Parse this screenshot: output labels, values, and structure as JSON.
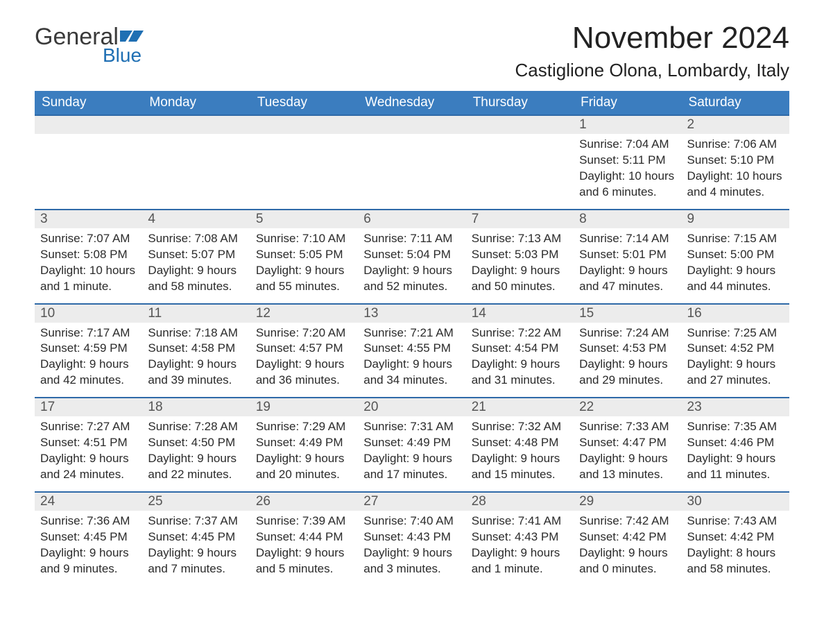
{
  "colors": {
    "header_blue": "#3b7dbf",
    "line_blue": "#2f6aa8",
    "band_gray": "#ececec",
    "logo_blue": "#1f6fb3",
    "background": "#ffffff",
    "text_dark": "#2a2a2a"
  },
  "logo": {
    "word1": "General",
    "word2": "Blue"
  },
  "title": "November 2024",
  "location": "Castiglione Olona, Lombardy, Italy",
  "weekdays": [
    "Sunday",
    "Monday",
    "Tuesday",
    "Wednesday",
    "Thursday",
    "Friday",
    "Saturday"
  ],
  "layout": {
    "columns": 7,
    "rows": 5,
    "type": "calendar"
  },
  "weeks": [
    [
      {
        "empty": true
      },
      {
        "empty": true
      },
      {
        "empty": true
      },
      {
        "empty": true
      },
      {
        "empty": true
      },
      {
        "day": "1",
        "sunrise": "Sunrise: 7:04 AM",
        "sunset": "Sunset: 5:11 PM",
        "daylight": "Daylight: 10 hours and 6 minutes."
      },
      {
        "day": "2",
        "sunrise": "Sunrise: 7:06 AM",
        "sunset": "Sunset: 5:10 PM",
        "daylight": "Daylight: 10 hours and 4 minutes."
      }
    ],
    [
      {
        "day": "3",
        "sunrise": "Sunrise: 7:07 AM",
        "sunset": "Sunset: 5:08 PM",
        "daylight": "Daylight: 10 hours and 1 minute."
      },
      {
        "day": "4",
        "sunrise": "Sunrise: 7:08 AM",
        "sunset": "Sunset: 5:07 PM",
        "daylight": "Daylight: 9 hours and 58 minutes."
      },
      {
        "day": "5",
        "sunrise": "Sunrise: 7:10 AM",
        "sunset": "Sunset: 5:05 PM",
        "daylight": "Daylight: 9 hours and 55 minutes."
      },
      {
        "day": "6",
        "sunrise": "Sunrise: 7:11 AM",
        "sunset": "Sunset: 5:04 PM",
        "daylight": "Daylight: 9 hours and 52 minutes."
      },
      {
        "day": "7",
        "sunrise": "Sunrise: 7:13 AM",
        "sunset": "Sunset: 5:03 PM",
        "daylight": "Daylight: 9 hours and 50 minutes."
      },
      {
        "day": "8",
        "sunrise": "Sunrise: 7:14 AM",
        "sunset": "Sunset: 5:01 PM",
        "daylight": "Daylight: 9 hours and 47 minutes."
      },
      {
        "day": "9",
        "sunrise": "Sunrise: 7:15 AM",
        "sunset": "Sunset: 5:00 PM",
        "daylight": "Daylight: 9 hours and 44 minutes."
      }
    ],
    [
      {
        "day": "10",
        "sunrise": "Sunrise: 7:17 AM",
        "sunset": "Sunset: 4:59 PM",
        "daylight": "Daylight: 9 hours and 42 minutes."
      },
      {
        "day": "11",
        "sunrise": "Sunrise: 7:18 AM",
        "sunset": "Sunset: 4:58 PM",
        "daylight": "Daylight: 9 hours and 39 minutes."
      },
      {
        "day": "12",
        "sunrise": "Sunrise: 7:20 AM",
        "sunset": "Sunset: 4:57 PM",
        "daylight": "Daylight: 9 hours and 36 minutes."
      },
      {
        "day": "13",
        "sunrise": "Sunrise: 7:21 AM",
        "sunset": "Sunset: 4:55 PM",
        "daylight": "Daylight: 9 hours and 34 minutes."
      },
      {
        "day": "14",
        "sunrise": "Sunrise: 7:22 AM",
        "sunset": "Sunset: 4:54 PM",
        "daylight": "Daylight: 9 hours and 31 minutes."
      },
      {
        "day": "15",
        "sunrise": "Sunrise: 7:24 AM",
        "sunset": "Sunset: 4:53 PM",
        "daylight": "Daylight: 9 hours and 29 minutes."
      },
      {
        "day": "16",
        "sunrise": "Sunrise: 7:25 AM",
        "sunset": "Sunset: 4:52 PM",
        "daylight": "Daylight: 9 hours and 27 minutes."
      }
    ],
    [
      {
        "day": "17",
        "sunrise": "Sunrise: 7:27 AM",
        "sunset": "Sunset: 4:51 PM",
        "daylight": "Daylight: 9 hours and 24 minutes."
      },
      {
        "day": "18",
        "sunrise": "Sunrise: 7:28 AM",
        "sunset": "Sunset: 4:50 PM",
        "daylight": "Daylight: 9 hours and 22 minutes."
      },
      {
        "day": "19",
        "sunrise": "Sunrise: 7:29 AM",
        "sunset": "Sunset: 4:49 PM",
        "daylight": "Daylight: 9 hours and 20 minutes."
      },
      {
        "day": "20",
        "sunrise": "Sunrise: 7:31 AM",
        "sunset": "Sunset: 4:49 PM",
        "daylight": "Daylight: 9 hours and 17 minutes."
      },
      {
        "day": "21",
        "sunrise": "Sunrise: 7:32 AM",
        "sunset": "Sunset: 4:48 PM",
        "daylight": "Daylight: 9 hours and 15 minutes."
      },
      {
        "day": "22",
        "sunrise": "Sunrise: 7:33 AM",
        "sunset": "Sunset: 4:47 PM",
        "daylight": "Daylight: 9 hours and 13 minutes."
      },
      {
        "day": "23",
        "sunrise": "Sunrise: 7:35 AM",
        "sunset": "Sunset: 4:46 PM",
        "daylight": "Daylight: 9 hours and 11 minutes."
      }
    ],
    [
      {
        "day": "24",
        "sunrise": "Sunrise: 7:36 AM",
        "sunset": "Sunset: 4:45 PM",
        "daylight": "Daylight: 9 hours and 9 minutes."
      },
      {
        "day": "25",
        "sunrise": "Sunrise: 7:37 AM",
        "sunset": "Sunset: 4:45 PM",
        "daylight": "Daylight: 9 hours and 7 minutes."
      },
      {
        "day": "26",
        "sunrise": "Sunrise: 7:39 AM",
        "sunset": "Sunset: 4:44 PM",
        "daylight": "Daylight: 9 hours and 5 minutes."
      },
      {
        "day": "27",
        "sunrise": "Sunrise: 7:40 AM",
        "sunset": "Sunset: 4:43 PM",
        "daylight": "Daylight: 9 hours and 3 minutes."
      },
      {
        "day": "28",
        "sunrise": "Sunrise: 7:41 AM",
        "sunset": "Sunset: 4:43 PM",
        "daylight": "Daylight: 9 hours and 1 minute."
      },
      {
        "day": "29",
        "sunrise": "Sunrise: 7:42 AM",
        "sunset": "Sunset: 4:42 PM",
        "daylight": "Daylight: 9 hours and 0 minutes."
      },
      {
        "day": "30",
        "sunrise": "Sunrise: 7:43 AM",
        "sunset": "Sunset: 4:42 PM",
        "daylight": "Daylight: 8 hours and 58 minutes."
      }
    ]
  ]
}
